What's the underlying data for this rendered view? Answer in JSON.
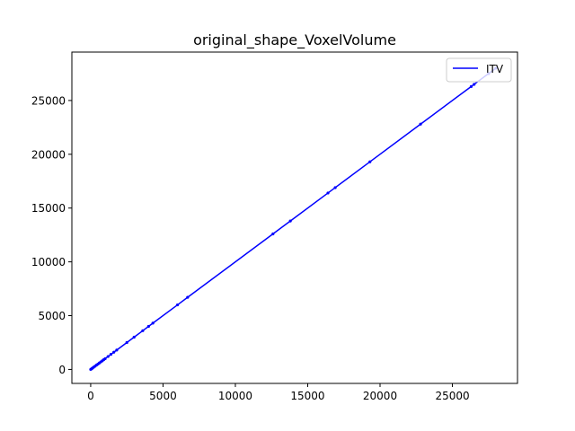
{
  "chart_data": {
    "type": "line",
    "title": "original_shape_VoxelVolume",
    "xlabel": "",
    "ylabel": "",
    "xlim": [
      -1300,
      29500
    ],
    "ylim": [
      -1300,
      29500
    ],
    "xticks": [
      0,
      5000,
      10000,
      15000,
      20000,
      25000
    ],
    "yticks": [
      0,
      5000,
      10000,
      15000,
      20000,
      25000
    ],
    "xticklabels": [
      "0",
      "5000",
      "10000",
      "15000",
      "20000",
      "25000"
    ],
    "yticklabels": [
      "0",
      "5000",
      "10000",
      "15000",
      "20000",
      "25000"
    ],
    "grid": false,
    "legend_position": "top-right",
    "series": [
      {
        "name": "ITV",
        "color": "#0000ff",
        "x": [
          0,
          60,
          120,
          200,
          300,
          400,
          500,
          600,
          700,
          800,
          900,
          1000,
          1200,
          1400,
          1600,
          1800,
          2500,
          3000,
          3600,
          4000,
          4300,
          6000,
          6700,
          12600,
          13800,
          16400,
          16900,
          19300,
          22800,
          26300,
          26500,
          27500,
          28000
        ],
        "y": [
          0,
          60,
          120,
          200,
          300,
          400,
          500,
          600,
          700,
          800,
          900,
          1000,
          1200,
          1400,
          1600,
          1800,
          2500,
          3000,
          3600,
          4000,
          4300,
          6000,
          6700,
          12600,
          13800,
          16400,
          16900,
          19300,
          22800,
          26300,
          26500,
          27500,
          28000
        ]
      }
    ]
  }
}
